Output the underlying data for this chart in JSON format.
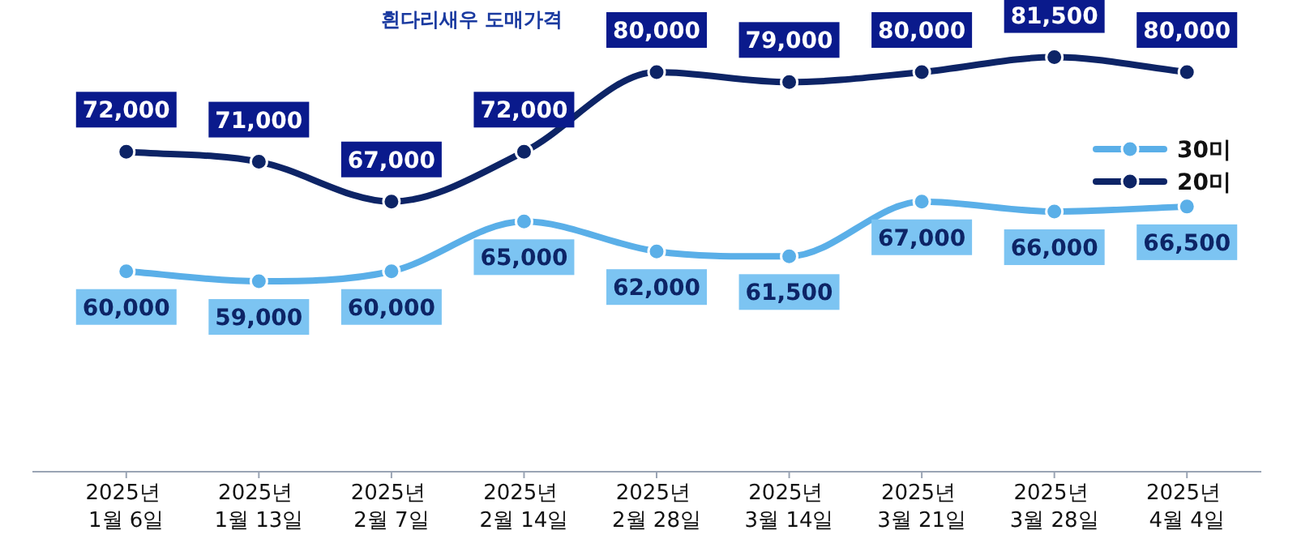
{
  "chart_data": {
    "type": "line",
    "title": "흰다리새우 도매가격",
    "categories": [
      "2025년 1월 6일",
      "2025년 1월 13일",
      "2025년 2월 7일",
      "2025년 2월 14일",
      "2025년 2월 28일",
      "2025년 3월 14일",
      "2025년 3월 21일",
      "2025년 3월 28일",
      "2025년 4월 4일"
    ],
    "series": [
      {
        "name": "30미",
        "color": "#5aafe8",
        "values": [
          60000,
          59000,
          60000,
          65000,
          62000,
          61500,
          67000,
          66000,
          66500
        ],
        "value_labels": [
          "60,000",
          "59,000",
          "60,000",
          "65,000",
          "62,000",
          "61,500",
          "67,000",
          "66,000",
          "66,500"
        ]
      },
      {
        "name": "20미",
        "color": "#0d2466",
        "values": [
          72000,
          71000,
          67000,
          72000,
          80000,
          79000,
          80000,
          81500,
          80000
        ],
        "value_labels": [
          "72,000",
          "71,000",
          "67,000",
          "72,000",
          "80,000",
          "79,000",
          "80,000",
          "81,500",
          "80,000"
        ]
      }
    ],
    "marker": "circle",
    "line_style": "solid",
    "legend": "right"
  }
}
